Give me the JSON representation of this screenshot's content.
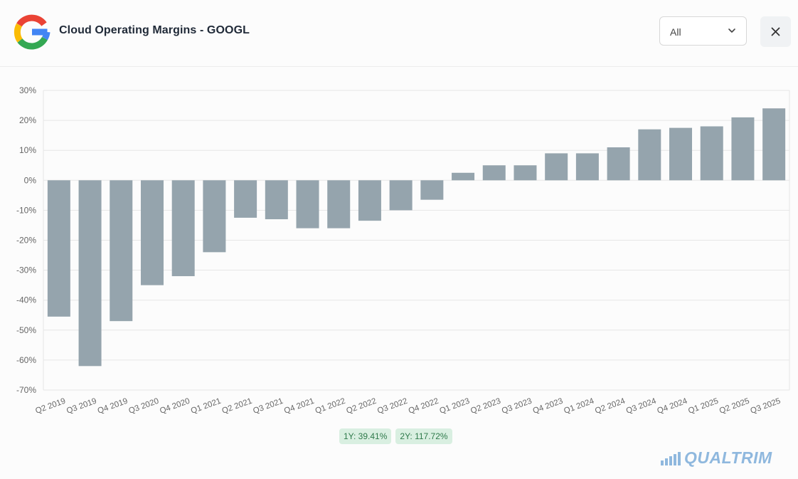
{
  "header": {
    "title": "Cloud Operating Margins - GOOGL",
    "range_select": {
      "value": "All"
    }
  },
  "colors": {
    "bar": "#95a4ad",
    "grid": "#e6e6e6",
    "axis_text": "#666666",
    "badge_bg": "#d9efe1",
    "badge_text": "#2f7a4b",
    "brand": "#8fb8de"
  },
  "icons": {
    "logo": "google-g-logo",
    "range_chevron": "chevron-down-icon",
    "close": "close-icon",
    "brand": "bar-chart-icon"
  },
  "badges": [
    {
      "label": "1Y: 39.41%"
    },
    {
      "label": "2Y: 117.72%"
    }
  ],
  "brand": {
    "name": "QUALTRIM"
  },
  "chart_data": {
    "type": "bar",
    "title": "",
    "xlabel": "",
    "ylabel": "",
    "ylim": [
      -70,
      30
    ],
    "yticks": [
      30,
      20,
      10,
      0,
      -10,
      -20,
      -30,
      -40,
      -50,
      -60,
      -70
    ],
    "ytick_labels": [
      "30%",
      "20%",
      "10%",
      "0%",
      "-10%",
      "-20%",
      "-30%",
      "-40%",
      "-50%",
      "-60%",
      "-70%"
    ],
    "grid": true,
    "categories": [
      "Q2 2019",
      "Q3 2019",
      "Q4 2019",
      "Q3 2020",
      "Q4 2020",
      "Q1 2021",
      "Q2 2021",
      "Q3 2021",
      "Q4 2021",
      "Q1 2022",
      "Q2 2022",
      "Q3 2022",
      "Q4 2022",
      "Q1 2023",
      "Q2 2023",
      "Q3 2023",
      "Q4 2023",
      "Q1 2024",
      "Q2 2024",
      "Q3 2024",
      "Q4 2024",
      "Q1 2025",
      "Q2 2025",
      "Q3 2025"
    ],
    "values": [
      -45.5,
      -62,
      -47,
      -35,
      -32,
      -24,
      -12.5,
      -13,
      -16,
      -16,
      -13.5,
      -10,
      -6.5,
      2.5,
      5,
      5,
      9,
      9,
      11,
      17,
      17.5,
      18,
      21,
      24
    ]
  }
}
